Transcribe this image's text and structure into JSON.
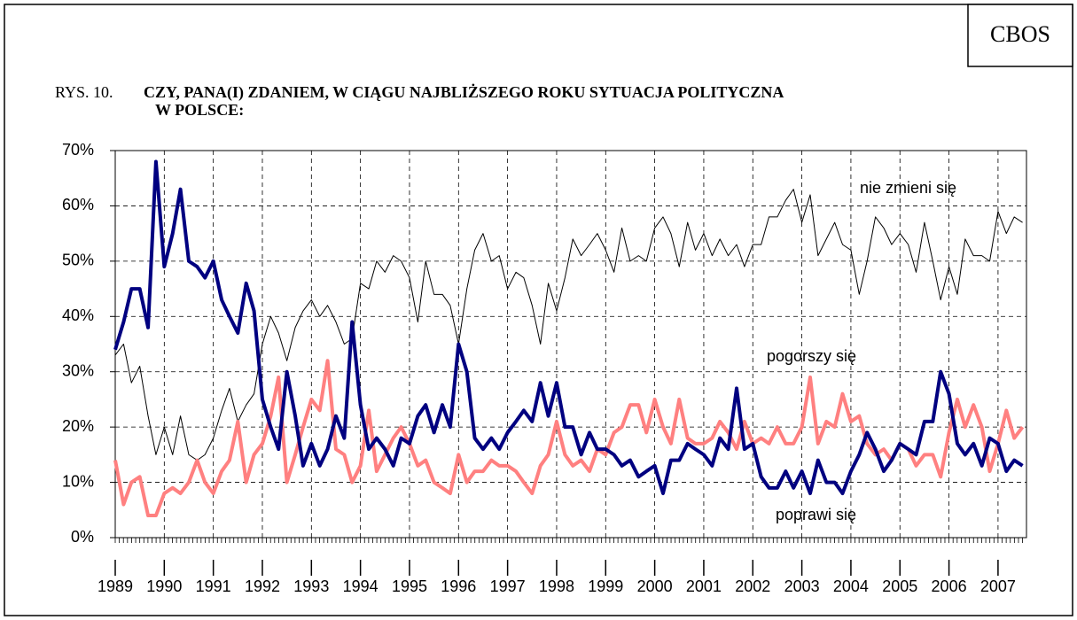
{
  "brand": "CBOS",
  "chart_data": {
    "type": "line",
    "figure_label": "RYS. 10.",
    "title_lines": [
      "CZY, PANA(I) ZDANIEM, W CIĄGU NAJBLIŻSZEGO ROKU SYTUACJA POLITYCZNA",
      "W POLSCE:"
    ],
    "x": [
      1989,
      1989.17,
      1989.33,
      1989.5,
      1989.67,
      1989.83,
      1990,
      1990.17,
      1990.33,
      1990.5,
      1990.67,
      1990.83,
      1991,
      1991.17,
      1991.33,
      1991.5,
      1991.67,
      1991.83,
      1992,
      1992.17,
      1992.33,
      1992.5,
      1992.67,
      1992.83,
      1993,
      1993.17,
      1993.33,
      1993.5,
      1993.67,
      1993.83,
      1994,
      1994.17,
      1994.33,
      1994.5,
      1994.67,
      1994.83,
      1995,
      1995.17,
      1995.33,
      1995.5,
      1995.67,
      1995.83,
      1996,
      1996.17,
      1996.33,
      1996.5,
      1996.67,
      1996.83,
      1997,
      1997.17,
      1997.33,
      1997.5,
      1997.67,
      1997.83,
      1998,
      1998.17,
      1998.33,
      1998.5,
      1998.67,
      1998.83,
      1999,
      1999.17,
      1999.33,
      1999.5,
      1999.67,
      1999.83,
      2000,
      2000.17,
      2000.33,
      2000.5,
      2000.67,
      2000.83,
      2001,
      2001.17,
      2001.33,
      2001.5,
      2001.67,
      2001.83,
      2002,
      2002.17,
      2002.33,
      2002.5,
      2002.67,
      2002.83,
      2003,
      2003.17,
      2003.33,
      2003.5,
      2003.67,
      2003.83,
      2004,
      2004.17,
      2004.33,
      2004.5,
      2004.67,
      2004.83,
      2005,
      2005.17,
      2005.33,
      2005.5,
      2005.67,
      2005.83,
      2006,
      2006.17,
      2006.33,
      2006.5,
      2006.67,
      2006.83,
      2007,
      2007.17,
      2007.33,
      2007.5
    ],
    "series": [
      {
        "name": "nie zmieni się",
        "color": "#000000",
        "width": 1,
        "values": [
          33,
          35,
          28,
          31,
          22,
          15,
          20,
          15,
          22,
          15,
          14,
          15,
          18,
          23,
          27,
          21,
          24,
          26,
          35,
          40,
          37,
          32,
          38,
          41,
          43,
          40,
          42,
          39,
          35,
          36,
          46,
          45,
          50,
          48,
          51,
          50,
          47,
          39,
          50,
          44,
          44,
          42,
          35,
          45,
          52,
          55,
          50,
          51,
          45,
          48,
          47,
          42,
          35,
          46,
          41,
          47,
          54,
          51,
          53,
          55,
          52,
          48,
          56,
          50,
          51,
          50,
          56,
          58,
          55,
          49,
          57,
          52,
          55,
          51,
          54,
          51,
          53,
          49,
          53,
          53,
          58,
          58,
          61,
          63,
          57,
          62,
          51,
          54,
          57,
          53,
          52,
          44,
          50,
          58,
          56,
          53,
          55,
          53,
          48,
          57,
          50,
          43,
          49,
          44,
          54,
          51,
          51,
          50,
          59,
          55,
          58,
          57
        ]
      },
      {
        "name": "pogorszy się",
        "color": "#ff8080",
        "width": 4,
        "values": [
          14,
          6,
          10,
          11,
          4,
          4,
          8,
          9,
          8,
          10,
          14,
          10,
          8,
          12,
          14,
          21,
          10,
          15,
          17,
          22,
          29,
          10,
          15,
          20,
          25,
          23,
          32,
          16,
          15,
          10,
          13,
          23,
          12,
          15,
          18,
          20,
          17,
          13,
          14,
          10,
          9,
          8,
          15,
          10,
          12,
          12,
          14,
          13,
          13,
          12,
          10,
          8,
          13,
          15,
          21,
          15,
          13,
          14,
          12,
          16,
          15,
          19,
          20,
          24,
          24,
          19,
          25,
          20,
          17,
          25,
          18,
          17,
          17,
          18,
          21,
          19,
          16,
          21,
          17,
          18,
          17,
          20,
          17,
          17,
          20,
          29,
          17,
          21,
          20,
          26,
          21,
          22,
          17,
          15,
          16,
          14,
          17,
          16,
          13,
          15,
          15,
          11,
          19,
          25,
          20,
          24,
          20,
          12,
          17,
          23,
          18,
          20
        ]
      },
      {
        "name": "poprawi się",
        "color": "#000080",
        "width": 4,
        "values": [
          34,
          39,
          45,
          45,
          38,
          68,
          49,
          55,
          63,
          50,
          49,
          47,
          50,
          43,
          40,
          37,
          46,
          41,
          25,
          20,
          16,
          30,
          22,
          13,
          17,
          13,
          16,
          22,
          18,
          39,
          24,
          16,
          18,
          16,
          13,
          18,
          17,
          22,
          24,
          19,
          24,
          20,
          35,
          30,
          18,
          16,
          18,
          16,
          19,
          21,
          23,
          21,
          28,
          22,
          28,
          20,
          20,
          15,
          19,
          16,
          16,
          15,
          13,
          14,
          11,
          12,
          13,
          8,
          14,
          14,
          17,
          16,
          15,
          13,
          18,
          16,
          27,
          16,
          17,
          11,
          9,
          9,
          12,
          9,
          12,
          8,
          14,
          10,
          10,
          8,
          12,
          15,
          19,
          16,
          12,
          14,
          17,
          16,
          15,
          21,
          21,
          30,
          26,
          17,
          15,
          17,
          13,
          18,
          17,
          12,
          14,
          13
        ]
      }
    ],
    "xlim": [
      1989,
      2007.58
    ],
    "xticks": [
      1989,
      1990,
      1991,
      1992,
      1993,
      1994,
      1995,
      1996,
      1997,
      1998,
      1999,
      2000,
      2001,
      2002,
      2003,
      2004,
      2005,
      2006,
      2007
    ],
    "x_minor_ticks": 12,
    "ylim": [
      0,
      70
    ],
    "yticks": [
      {
        "value": 0,
        "label": "0%"
      },
      {
        "value": 10,
        "label": "10%"
      },
      {
        "value": 20,
        "label": "20%"
      },
      {
        "value": 30,
        "label": "30%"
      },
      {
        "value": 40,
        "label": "40%"
      },
      {
        "value": 50,
        "label": "50%"
      },
      {
        "value": 60,
        "label": "60%"
      },
      {
        "value": 70,
        "label": "70%"
      }
    ],
    "grid": true
  }
}
